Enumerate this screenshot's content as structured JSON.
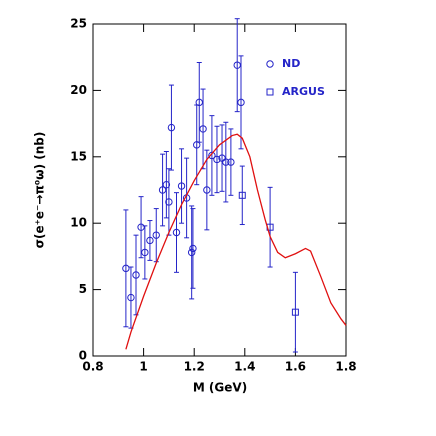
{
  "chart_data": {
    "type": "scatter",
    "x_label": "M (GeV)",
    "y_label": "σ(e⁺e⁻→π⁰ω) (nb)",
    "xlim": [
      0.8,
      1.8
    ],
    "xticks": [
      0.8,
      1,
      1.2,
      1.4,
      1.6,
      1.8
    ],
    "ylim": [
      0,
      25
    ],
    "yticks": [
      0,
      5,
      10,
      15,
      20,
      25
    ],
    "legend": "upper right",
    "series": [
      {
        "name": "ND",
        "color": "#2424c8",
        "marker": "circle",
        "x": [
          0.93,
          0.95,
          0.97,
          0.99,
          1.005,
          1.025,
          1.05,
          1.075,
          1.09,
          1.1,
          1.11,
          1.13,
          1.15,
          1.17,
          1.19,
          1.195,
          1.21,
          1.22,
          1.235,
          1.25,
          1.27,
          1.29,
          1.31,
          1.325,
          1.345,
          1.37,
          1.385
        ],
        "values": [
          6.6,
          4.4,
          6.1,
          9.7,
          7.8,
          8.7,
          9.1,
          12.5,
          12.9,
          11.6,
          17.2,
          9.3,
          12.8,
          11.9,
          7.8,
          8.1,
          15.9,
          19.1,
          17.1,
          12.5,
          15.1,
          14.8,
          14.9,
          14.6,
          14.6,
          21.9,
          19.1
        ],
        "error": [
          4.4,
          2.3,
          3,
          2.3,
          2,
          1.5,
          2,
          2.7,
          2.5,
          2.5,
          3.2,
          3,
          2.8,
          3,
          3.5,
          3,
          3,
          3,
          3,
          3,
          3,
          2.5,
          2.5,
          3,
          2.5,
          3.5,
          3.5
        ]
      },
      {
        "name": "ARGUS",
        "color": "#2424c8",
        "marker": "square",
        "x": [
          1.39,
          1.5,
          1.6
        ],
        "values": [
          12.1,
          9.7,
          3.3
        ],
        "error": [
          2.2,
          3,
          3
        ]
      },
      {
        "color": "#e01010",
        "marker": "line",
        "x": [
          0.93,
          0.95,
          1.0,
          1.05,
          1.1,
          1.15,
          1.2,
          1.25,
          1.3,
          1.35,
          1.37,
          1.39,
          1.42,
          1.45,
          1.48,
          1.5,
          1.53,
          1.56,
          1.6,
          1.64,
          1.66,
          1.7,
          1.74,
          1.78,
          1.8
        ],
        "values": [
          0.5,
          1.8,
          4.5,
          7,
          9.3,
          11.4,
          13.2,
          14.8,
          15.9,
          16.6,
          16.7,
          16.4,
          15,
          12.5,
          10.3,
          9,
          7.8,
          7.4,
          7.7,
          8.1,
          7.9,
          6,
          4,
          2.8,
          2.3
        ]
      }
    ]
  }
}
